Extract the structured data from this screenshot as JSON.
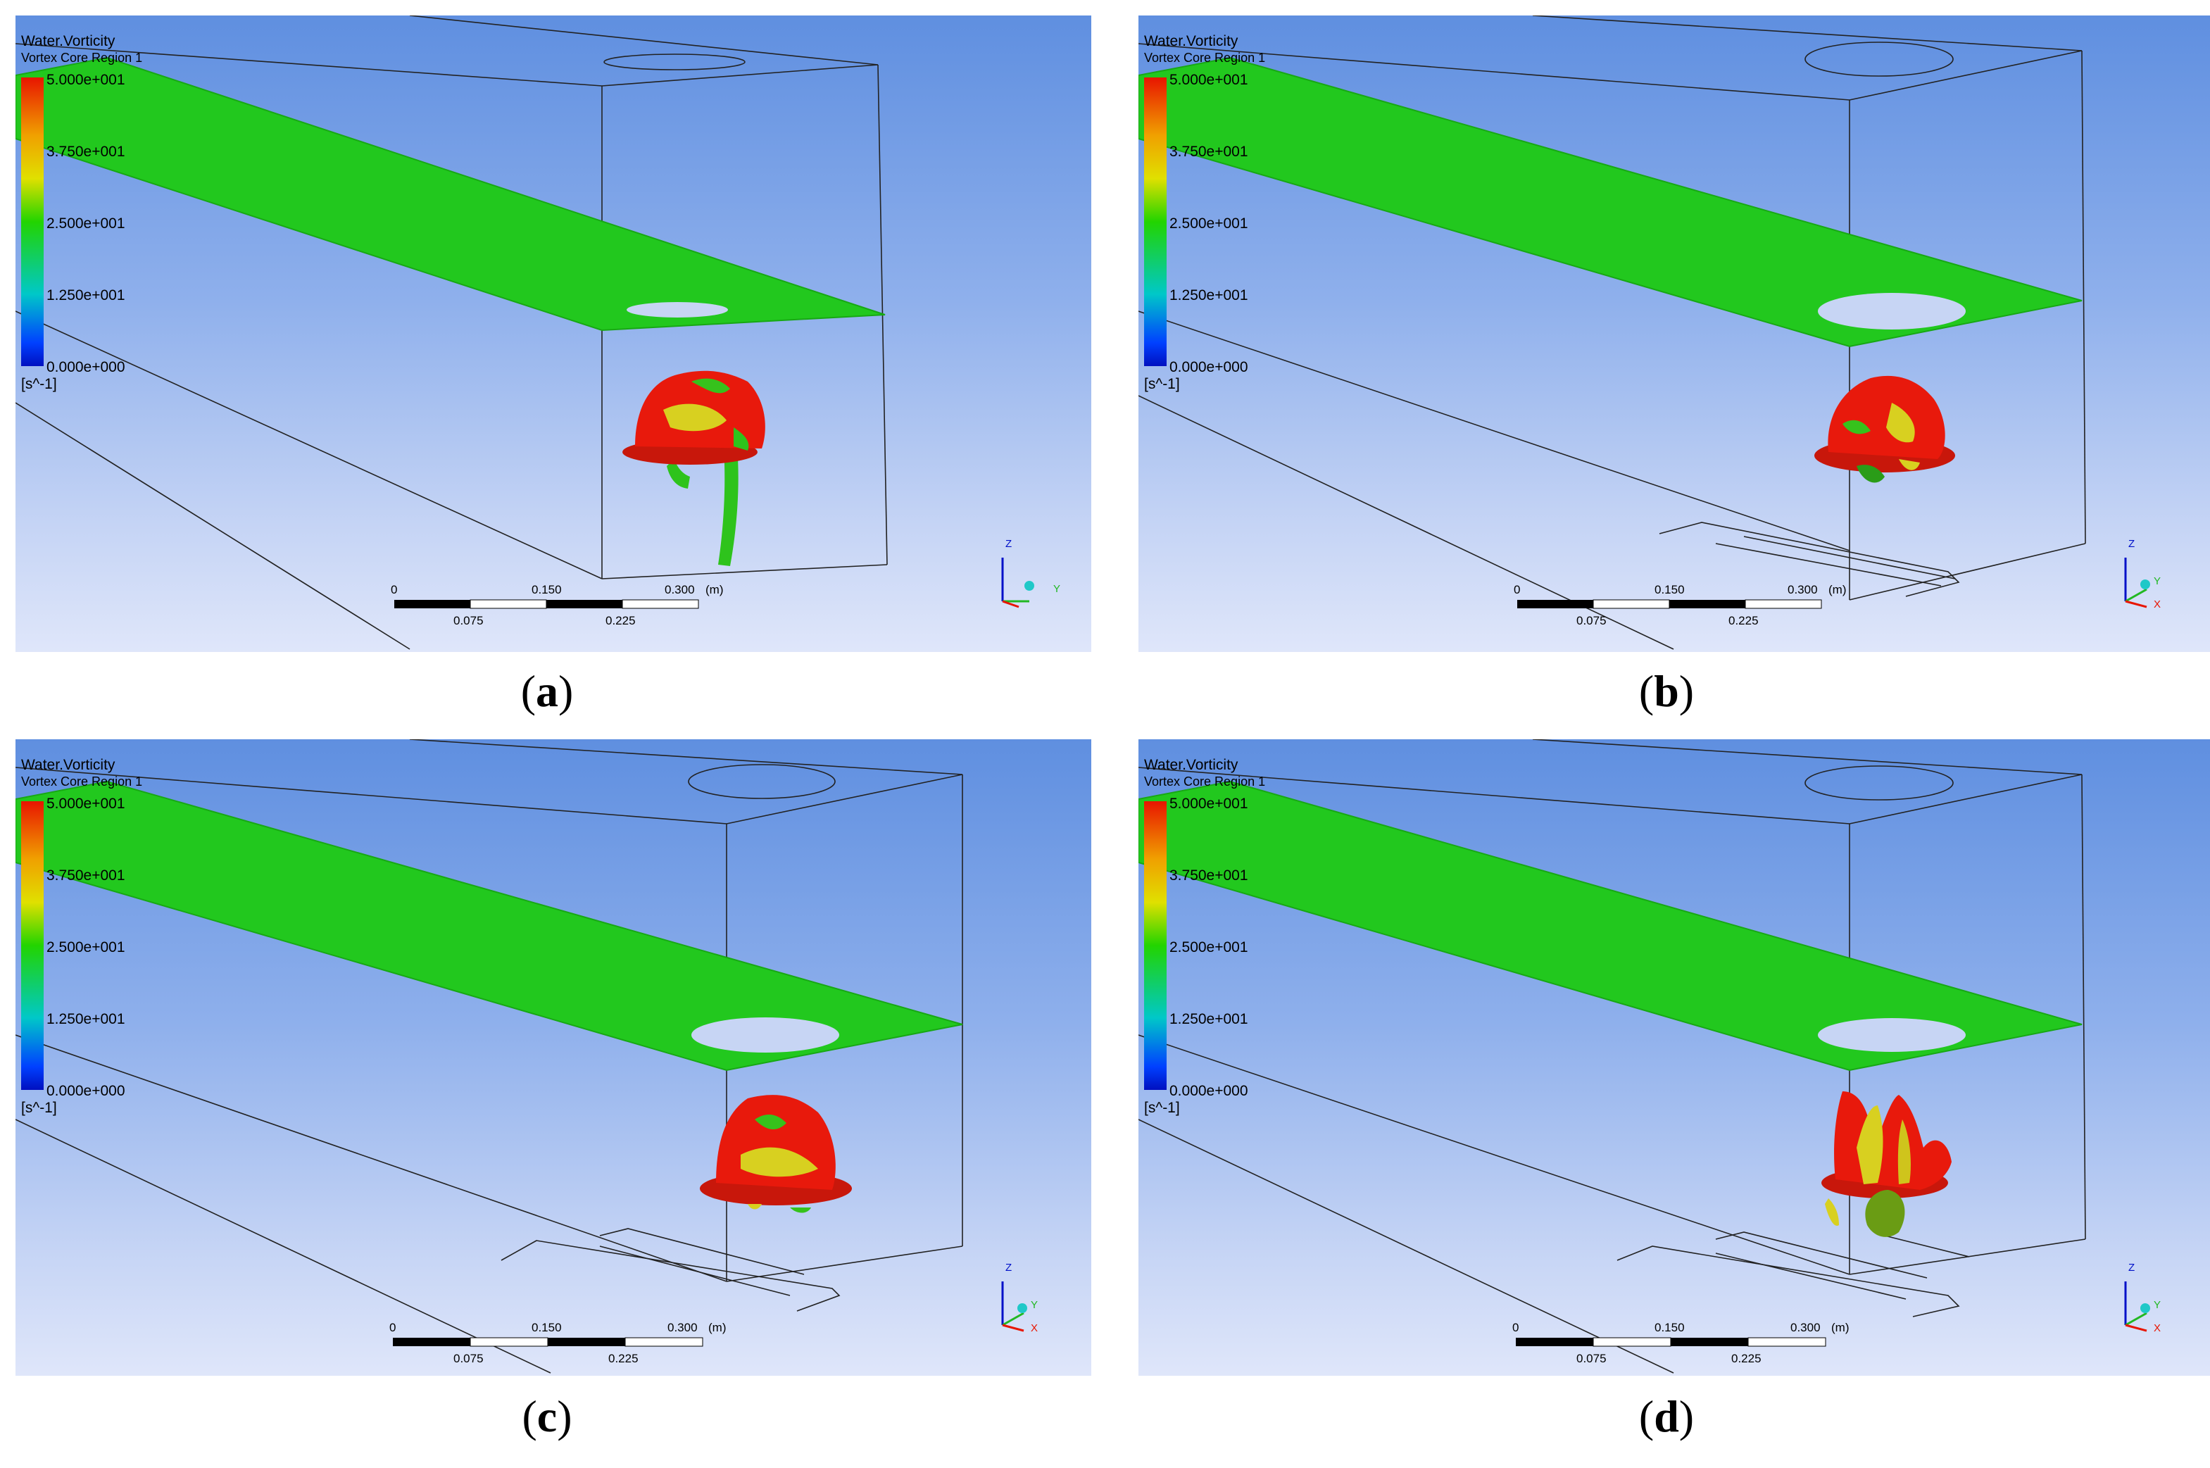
{
  "legend": {
    "title": "Water.Vorticity",
    "subtitle": "Vortex Core Region 1",
    "ticks": [
      "5.000e+001",
      "3.750e+001",
      "2.500e+001",
      "1.250e+001",
      "0.000e+000"
    ],
    "unit": "[s^-1]"
  },
  "scale_bar": {
    "top_labels": [
      "0",
      "0.150",
      "0.300"
    ],
    "unit": "(m)",
    "bottom_labels": [
      "0.075",
      "0.225"
    ]
  },
  "axes": {
    "z": "Z",
    "y": "Y",
    "x": "X"
  },
  "panels": [
    {
      "caption": "a"
    },
    {
      "caption": "b"
    },
    {
      "caption": "c"
    },
    {
      "caption": "d"
    }
  ],
  "colors": {
    "sheet": "#22c81e",
    "vortex_red": "#e8190c",
    "vortex_yellow": "#d8d020",
    "bg_top": "#5f8fe0",
    "bg_bottom": "#dfe6fa"
  }
}
